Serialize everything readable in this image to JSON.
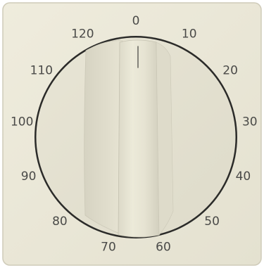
{
  "device": {
    "plate_color": "#ebe8d8",
    "plate_edge_color": "#c9c5b3",
    "dial_color": "#e5e2d2",
    "ring_color": "#2a2a28",
    "label_color": "#4a4a48",
    "knob_color": "#e9e6d6",
    "indicator_icon": "pointer-line-icon"
  },
  "dial": {
    "unit_max": 130,
    "labels": [
      {
        "value": 0,
        "text": "0"
      },
      {
        "value": 10,
        "text": "10"
      },
      {
        "value": 20,
        "text": "20"
      },
      {
        "value": 30,
        "text": "30"
      },
      {
        "value": 40,
        "text": "40"
      },
      {
        "value": 50,
        "text": "50"
      },
      {
        "value": 60,
        "text": "60"
      },
      {
        "value": 70,
        "text": "70"
      },
      {
        "value": 80,
        "text": "80"
      },
      {
        "value": 90,
        "text": "90"
      },
      {
        "value": 100,
        "text": "100"
      },
      {
        "value": 110,
        "text": "110"
      },
      {
        "value": 120,
        "text": "120"
      }
    ],
    "setting": 0
  }
}
